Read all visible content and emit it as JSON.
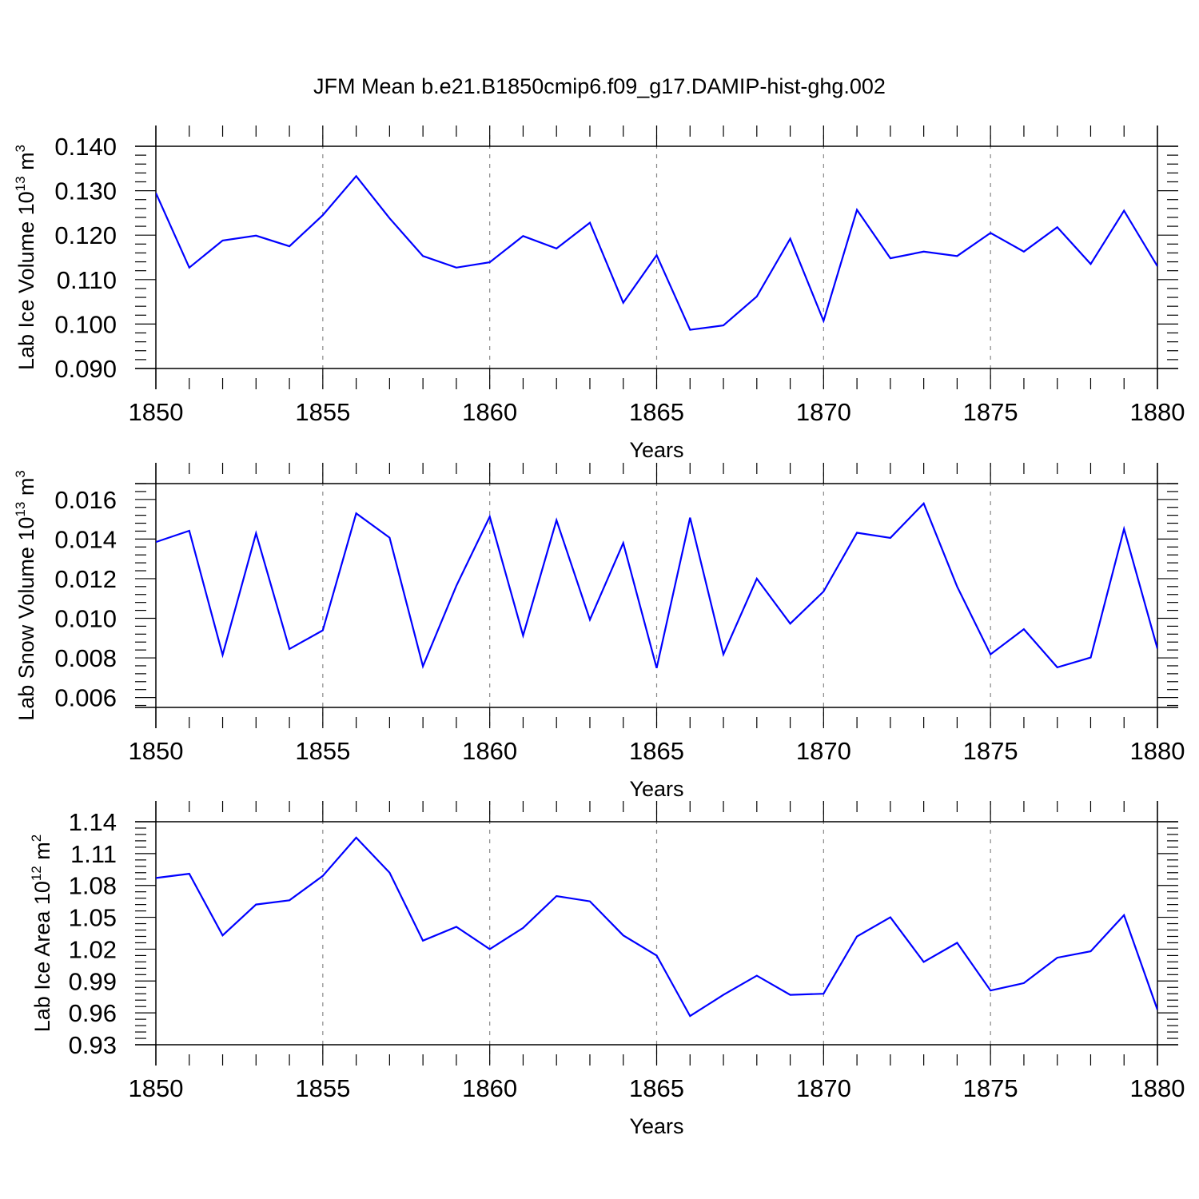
{
  "figure_title": "JFM Mean b.e21.B1850cmip6.f09_g17.DAMIP-hist-ghg.002",
  "colors": {
    "series": "#0000ff",
    "axis": "#000000",
    "grid": "#888888"
  },
  "chart_data": [
    {
      "type": "line",
      "panel_name": "ice-volume",
      "ylabel": {
        "prefix": "Lab Ice Volume 10",
        "exp1": "13",
        "mid": " m",
        "exp2": "3"
      },
      "xlabel": "Years",
      "xlim": [
        1850,
        1880
      ],
      "ylim": [
        0.09,
        0.14
      ],
      "xticks": [
        1850,
        1855,
        1860,
        1865,
        1870,
        1875,
        1880
      ],
      "xtick_labels": [
        "1850",
        "1855",
        "1860",
        "1865",
        "1870",
        "1875",
        "1880"
      ],
      "yticks": [
        0.09,
        0.1,
        0.11,
        0.12,
        0.13,
        0.14
      ],
      "ytick_labels": [
        "0.090",
        "0.100",
        "0.110",
        "0.120",
        "0.130",
        "0.140"
      ],
      "grid": "vertical dashed at major x ticks",
      "series": [
        {
          "name": "Lab Ice Volume",
          "x": [
            1850,
            1851,
            1852,
            1853,
            1854,
            1855,
            1856,
            1857,
            1858,
            1859,
            1860,
            1861,
            1862,
            1863,
            1864,
            1865,
            1866,
            1867,
            1868,
            1869,
            1870,
            1871,
            1872,
            1873,
            1874,
            1875,
            1876,
            1877,
            1878,
            1879,
            1880
          ],
          "values": [
            0.1295,
            0.1127,
            0.1188,
            0.1199,
            0.1175,
            0.1245,
            0.1333,
            0.1238,
            0.1153,
            0.1127,
            0.1139,
            0.1198,
            0.117,
            0.1228,
            0.1048,
            0.1155,
            0.0987,
            0.0997,
            0.1062,
            0.1192,
            0.1007,
            0.1257,
            0.1148,
            0.1163,
            0.1153,
            0.1205,
            0.1163,
            0.1218,
            0.1135,
            0.1255,
            0.113
          ]
        }
      ]
    },
    {
      "type": "line",
      "panel_name": "snow-volume",
      "ylabel": {
        "prefix": "Lab Snow Volume 10",
        "exp1": "13",
        "mid": " m",
        "exp2": "3"
      },
      "xlabel": "Years",
      "xlim": [
        1850,
        1880
      ],
      "ylim": [
        0.0055,
        0.0168
      ],
      "xticks": [
        1850,
        1855,
        1860,
        1865,
        1870,
        1875,
        1880
      ],
      "xtick_labels": [
        "1850",
        "1855",
        "1860",
        "1865",
        "1870",
        "1875",
        "1880"
      ],
      "yticks": [
        0.006,
        0.008,
        0.01,
        0.012,
        0.014,
        0.016
      ],
      "ytick_labels": [
        "0.006",
        "0.008",
        "0.010",
        "0.012",
        "0.014",
        "0.016"
      ],
      "grid": "vertical dashed at major x ticks",
      "series": [
        {
          "name": "Lab Snow Volume",
          "x": [
            1850,
            1851,
            1852,
            1853,
            1854,
            1855,
            1856,
            1857,
            1858,
            1859,
            1860,
            1861,
            1862,
            1863,
            1864,
            1865,
            1866,
            1867,
            1868,
            1869,
            1870,
            1871,
            1872,
            1873,
            1874,
            1875,
            1876,
            1877,
            1878,
            1879,
            1880
          ],
          "values": [
            0.01385,
            0.01442,
            0.00815,
            0.01429,
            0.00845,
            0.00939,
            0.0153,
            0.01407,
            0.00758,
            0.01164,
            0.01513,
            0.00913,
            0.01495,
            0.00993,
            0.0138,
            0.00749,
            0.01508,
            0.00818,
            0.012,
            0.00973,
            0.01135,
            0.01432,
            0.01406,
            0.0158,
            0.0116,
            0.00818,
            0.00945,
            0.00752,
            0.00802,
            0.01451,
            0.00847
          ]
        }
      ]
    },
    {
      "type": "line",
      "panel_name": "ice-area",
      "ylabel": {
        "prefix": "Lab Ice Area 10",
        "exp1": "12",
        "mid": " m",
        "exp2": "2"
      },
      "xlabel": "Years",
      "xlim": [
        1850,
        1880
      ],
      "ylim": [
        0.93,
        1.14
      ],
      "xticks": [
        1850,
        1855,
        1860,
        1865,
        1870,
        1875,
        1880
      ],
      "xtick_labels": [
        "1850",
        "1855",
        "1860",
        "1865",
        "1870",
        "1875",
        "1880"
      ],
      "yticks": [
        0.93,
        0.96,
        0.99,
        1.02,
        1.05,
        1.08,
        1.11,
        1.14
      ],
      "ytick_labels": [
        "0.93",
        "0.96",
        "0.99",
        "1.02",
        "1.05",
        "1.08",
        "1.11",
        "1.14"
      ],
      "grid": "vertical dashed at major x ticks",
      "series": [
        {
          "name": "Lab Ice Area",
          "x": [
            1850,
            1851,
            1852,
            1853,
            1854,
            1855,
            1856,
            1857,
            1858,
            1859,
            1860,
            1861,
            1862,
            1863,
            1864,
            1865,
            1866,
            1867,
            1868,
            1869,
            1870,
            1871,
            1872,
            1873,
            1874,
            1875,
            1876,
            1877,
            1878,
            1879,
            1880
          ],
          "values": [
            1.087,
            1.091,
            1.033,
            1.062,
            1.066,
            1.089,
            1.125,
            1.092,
            1.028,
            1.041,
            1.02,
            1.04,
            1.07,
            1.065,
            1.033,
            1.014,
            0.957,
            0.977,
            0.995,
            0.977,
            0.978,
            1.032,
            1.05,
            1.008,
            1.026,
            0.981,
            0.988,
            1.012,
            1.018,
            1.052,
            0.963
          ]
        }
      ]
    }
  ]
}
